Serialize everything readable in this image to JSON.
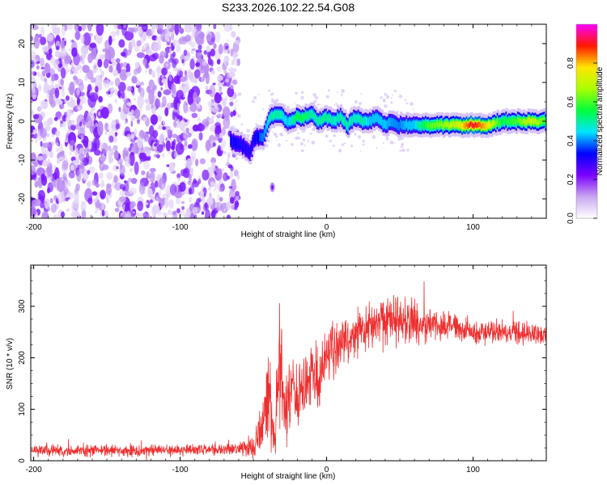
{
  "title": "S233.2026.102.22.54.G08",
  "colors": {
    "snr_line": "#ee2f2f",
    "axis": "#000000",
    "background": "#ffffff",
    "colormap": [
      "#ffffff",
      "#c9a7f0",
      "#7b00ff",
      "#0000ff",
      "#00e5ff",
      "#00ff3c",
      "#aaff00",
      "#ffe600",
      "#ff1800",
      "#ff00ff"
    ]
  },
  "chart_data": [
    {
      "type": "heatmap",
      "name": "spectrogram",
      "xlabel": "Height of straight line (km)",
      "ylabel": "Frequency (Hz)",
      "xlim": [
        -202,
        150
      ],
      "ylim": [
        -25,
        25
      ],
      "xticks": [
        -200,
        -100,
        0,
        100
      ],
      "xtick_labels": [
        "-200",
        "-100",
        "0",
        "100"
      ],
      "yticks": [
        -20,
        -10,
        0,
        10,
        20
      ],
      "ytick_labels": [
        "-20",
        "-10",
        "0",
        "10",
        "20"
      ],
      "noise_region_x": [
        -202,
        -60
      ],
      "ridge": {
        "x": [
          -65,
          -58,
          -52,
          -48,
          -43,
          -38,
          -32,
          -26,
          -20,
          -15,
          -10,
          -5,
          0,
          5,
          10,
          15,
          20,
          25,
          30,
          35,
          40,
          45,
          50,
          55,
          60,
          70,
          80,
          90,
          100,
          110,
          120,
          130,
          140,
          150
        ],
        "frequency_hz": [
          -5,
          -6,
          -8,
          -4,
          -4,
          1,
          2,
          0,
          1,
          1,
          2,
          0,
          1,
          0,
          1,
          -1,
          1,
          0,
          0,
          1,
          -1,
          0,
          -1,
          -1,
          -1,
          -1,
          -1,
          -1,
          -1,
          -1,
          0,
          0,
          0,
          0
        ],
        "amplitude": [
          0.35,
          0.32,
          0.3,
          0.35,
          0.4,
          0.5,
          0.5,
          0.45,
          0.55,
          0.55,
          0.5,
          0.5,
          0.52,
          0.48,
          0.5,
          0.5,
          0.48,
          0.5,
          0.45,
          0.45,
          0.45,
          0.42,
          0.4,
          0.45,
          0.45,
          0.6,
          0.65,
          0.72,
          0.92,
          0.78,
          0.55,
          0.6,
          0.72,
          0.6
        ]
      },
      "colorbar": {
        "label": "Normalized spectral amplitude",
        "range": [
          0,
          1
        ],
        "ticks": [
          0.0,
          0.2,
          0.4,
          0.6,
          0.8
        ],
        "tick_labels": [
          "0.0",
          "0.2",
          "0.4",
          "0.6",
          "0.8"
        ]
      }
    },
    {
      "type": "line",
      "name": "snr",
      "xlabel": "Height of straight line (km)",
      "ylabel": "SNR (10 * v/v)",
      "xlim": [
        -202,
        150
      ],
      "ylim": [
        0,
        380
      ],
      "xticks": [
        -200,
        -100,
        0,
        100
      ],
      "xtick_labels": [
        "-200",
        "-100",
        "0",
        "100"
      ],
      "yticks": [
        0,
        100,
        200,
        300
      ],
      "ytick_labels": [
        "0",
        "100",
        "200",
        "300"
      ],
      "series": [
        {
          "name": "SNR",
          "x": [
            -202,
            -180,
            -160,
            -140,
            -120,
            -100,
            -80,
            -60,
            -50,
            -45,
            -40,
            -35,
            -32,
            -28,
            -25,
            -20,
            -15,
            -10,
            -5,
            0,
            5,
            10,
            20,
            30,
            40,
            50,
            60,
            70,
            80,
            90,
            100,
            110,
            120,
            130,
            140,
            150
          ],
          "center": [
            20,
            20,
            20,
            20,
            20,
            20,
            22,
            22,
            25,
            70,
            130,
            40,
            230,
            60,
            140,
            120,
            150,
            180,
            150,
            200,
            215,
            230,
            250,
            265,
            275,
            272,
            270,
            265,
            260,
            255,
            250,
            248,
            250,
            247,
            248,
            245
          ],
          "spread": [
            10,
            10,
            10,
            10,
            10,
            10,
            10,
            10,
            25,
            45,
            80,
            40,
            110,
            60,
            60,
            60,
            60,
            55,
            50,
            50,
            45,
            45,
            40,
            40,
            45,
            40,
            40,
            30,
            25,
            22,
            20,
            20,
            20,
            18,
            18,
            18
          ]
        }
      ]
    }
  ]
}
